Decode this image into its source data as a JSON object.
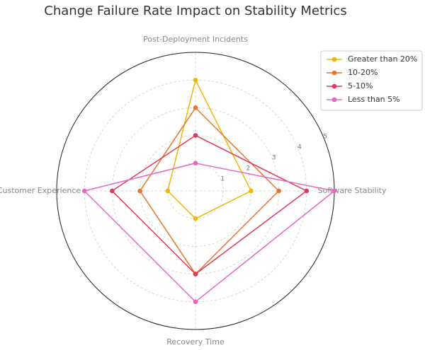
{
  "chart_data": {
    "type": "radar",
    "title": "Change Failure Rate Impact on Stability Metrics",
    "categories": [
      "Post-Deployment Incidents",
      "Software Stability",
      "Recovery Time",
      "Customer Experience"
    ],
    "series": [
      {
        "name": "Greater than 20%",
        "color": "#f2b705",
        "values": [
          4,
          2,
          1,
          1
        ]
      },
      {
        "name": "10-20%",
        "color": "#e8742c",
        "values": [
          3,
          3,
          3,
          2
        ]
      },
      {
        "name": "5-10%",
        "color": "#df3a5a",
        "values": [
          2,
          4,
          3,
          3
        ]
      },
      {
        "name": "Less than 5%",
        "color": "#e866c8",
        "values": [
          1,
          5,
          4,
          4
        ]
      }
    ],
    "ylim": [
      0,
      5
    ],
    "yticks": [
      1,
      2,
      3,
      4,
      5
    ],
    "grid": true,
    "legend": "upper right"
  }
}
